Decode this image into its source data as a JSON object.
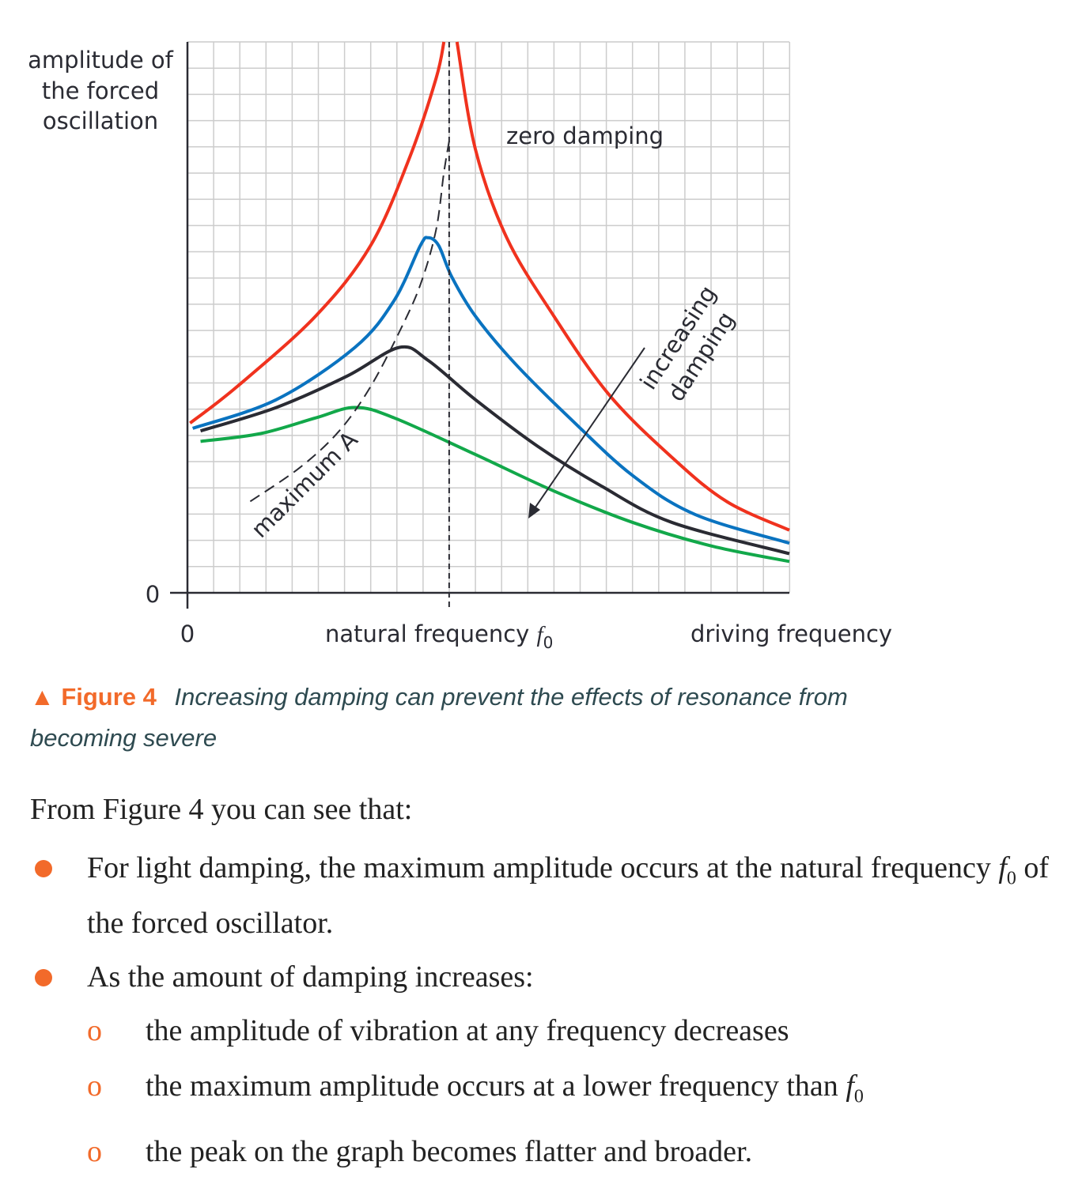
{
  "chart_data": {
    "type": "line",
    "title": "",
    "ylabel": "amplitude of the forced oscillation",
    "xlabel": "driving frequency",
    "x_tick_labels": {
      "origin": "0",
      "f0": "natural frequency f0"
    },
    "y_tick_labels": {
      "origin": "0"
    },
    "x_units": "multiples of natural frequency f0",
    "xlim": [
      0,
      2.3
    ],
    "ylim": [
      0,
      21.1
    ],
    "grid": true,
    "reference_line": {
      "label": "natural frequency f0",
      "x": 1.0,
      "style": "dashed"
    },
    "series": [
      {
        "name": "zero damping",
        "color": "#f0321e",
        "segments": [
          [
            [
              0.01,
              6.5
            ],
            [
              0.19,
              7.9
            ],
            [
              0.49,
              10.6
            ],
            [
              0.7,
              13.3
            ],
            [
              0.85,
              16.7
            ],
            [
              0.95,
              19.7
            ],
            [
              0.98,
              21.1
            ]
          ],
          [
            [
              1.03,
              21.1
            ],
            [
              1.1,
              17.0
            ],
            [
              1.22,
              13.6
            ],
            [
              1.4,
              10.6
            ],
            [
              1.61,
              7.6
            ],
            [
              1.85,
              5.2
            ],
            [
              2.06,
              3.5
            ],
            [
              2.3,
              2.4
            ]
          ]
        ]
      },
      {
        "color": "#0a73c0",
        "segments": [
          [
            [
              0.02,
              6.3
            ],
            [
              0.34,
              7.4
            ],
            [
              0.64,
              9.4
            ],
            [
              0.79,
              11.2
            ],
            [
              0.89,
              13.3
            ],
            [
              0.92,
              13.6
            ],
            [
              0.96,
              13.3
            ],
            [
              1.01,
              12.1
            ],
            [
              1.1,
              10.6
            ],
            [
              1.25,
              8.8
            ],
            [
              1.46,
              6.7
            ],
            [
              1.7,
              4.5
            ],
            [
              1.94,
              3.0
            ],
            [
              2.3,
              1.9
            ]
          ]
        ]
      },
      {
        "color": "#2a2b33",
        "segments": [
          [
            [
              0.05,
              6.2
            ],
            [
              0.34,
              7.1
            ],
            [
              0.61,
              8.3
            ],
            [
              0.81,
              9.4
            ],
            [
              0.92,
              8.9
            ],
            [
              1.1,
              7.4
            ],
            [
              1.34,
              5.6
            ],
            [
              1.58,
              4.1
            ],
            [
              1.85,
              2.7
            ],
            [
              2.3,
              1.5
            ]
          ]
        ]
      },
      {
        "color": "#12a84a",
        "segments": [
          [
            [
              0.05,
              5.8
            ],
            [
              0.28,
              6.1
            ],
            [
              0.49,
              6.7
            ],
            [
              0.64,
              7.1
            ],
            [
              0.79,
              6.7
            ],
            [
              1.1,
              5.3
            ],
            [
              1.4,
              3.9
            ],
            [
              1.7,
              2.7
            ],
            [
              2.0,
              1.8
            ],
            [
              2.3,
              1.2
            ]
          ]
        ]
      },
      {
        "name": "maximum A",
        "color": "#2a2b33",
        "style": "dashed",
        "segments": [
          [
            [
              0.24,
              3.5
            ],
            [
              0.43,
              4.8
            ],
            [
              0.58,
              6.2
            ],
            [
              0.7,
              7.9
            ],
            [
              0.81,
              10.0
            ],
            [
              0.89,
              11.8
            ],
            [
              0.95,
              13.9
            ],
            [
              0.98,
              16.1
            ],
            [
              1.0,
              17.3
            ]
          ]
        ]
      }
    ],
    "annotations": {
      "zero_damping": "zero damping",
      "maximum_a": "maximum A",
      "increasing_damping_1": "increasing",
      "increasing_damping_2": "damping"
    }
  },
  "caption": {
    "figure_label": "Figure 4",
    "text": "Increasing damping can prevent the effects of resonance from becoming severe"
  },
  "body": {
    "intro": "From Figure 4 you can see that:",
    "bullet1_a": "For light damping, the maximum amplitude occurs at the natural frequency ",
    "bullet1_f": "f",
    "bullet1_sub": "0",
    "bullet1_b": " of the forced oscillator.",
    "bullet2": "As the amount of damping increases:",
    "sub_marker": "o",
    "sub1": "the amplitude of vibration at any frequency decreases",
    "sub2_a": "the maximum amplitude occurs at a lower frequency than ",
    "sub2_f": "f",
    "sub2_sub": "0",
    "sub3": "the peak on the graph becomes flatter and broader."
  },
  "colors": {
    "accent": "#f26a2a",
    "caption_text": "#2e4a50",
    "grid": "#cccccc"
  }
}
